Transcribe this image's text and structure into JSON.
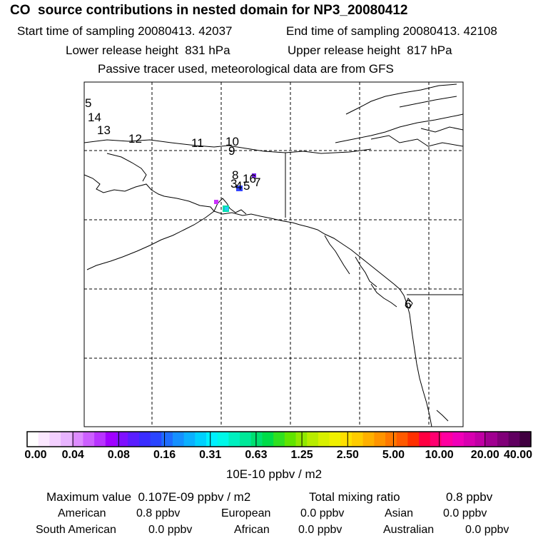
{
  "header": {
    "title": "CO  source contributions in nested domain for NP3_20080412",
    "start_time": "Start time of sampling 20080413. 42037",
    "end_time": "End time of sampling 20080413. 42108",
    "lower_release": "Lower release height  831 hPa",
    "upper_release": "Upper release height  817 hPa",
    "tracer_note": "Passive tracer used, meteorological data are from GFS"
  },
  "map": {
    "markers": [
      {
        "label": "5"
      },
      {
        "label": "14"
      },
      {
        "label": "13"
      },
      {
        "label": "12"
      },
      {
        "label": "11"
      },
      {
        "label": "10"
      },
      {
        "label": "9"
      },
      {
        "label": "8"
      },
      {
        "label": "16"
      },
      {
        "label": "7"
      },
      {
        "label": "3"
      },
      {
        "label": "4"
      },
      {
        "label": "5"
      },
      {
        "label": "6"
      }
    ],
    "highlight_colors": [
      "#cc33ff",
      "#00ddaa",
      "#3344ff",
      "#7722ee",
      "#22ccff"
    ]
  },
  "colorbar": {
    "ticks": [
      "0.00",
      "0.04",
      "0.08",
      "0.16",
      "0.31",
      "0.63",
      "1.25",
      "2.50",
      "5.00",
      "10.00",
      "20.00",
      "40.00"
    ],
    "units": "10E-10 ppbv / m2",
    "colors": [
      "#ffffff",
      "#fbe8ff",
      "#f3d0ff",
      "#e8b4ff",
      "#dd8cff",
      "#cc5fff",
      "#b833ff",
      "#a000ff",
      "#7f10ff",
      "#5a1eff",
      "#3a2dff",
      "#2a45ff",
      "#1e6cff",
      "#1590ff",
      "#0bb0ff",
      "#00d0ff",
      "#00f0ff",
      "#00f8e8",
      "#00f0c0",
      "#00e898",
      "#00e070",
      "#00dc48",
      "#30e020",
      "#60e400",
      "#90e800",
      "#b8ec00",
      "#d8f000",
      "#f0f000",
      "#ffe000",
      "#ffcc00",
      "#ffb000",
      "#ff9400",
      "#ff7800",
      "#ff5a00",
      "#ff3000",
      "#ff0040",
      "#ff0070",
      "#ff00a0",
      "#f000b8",
      "#d800b0",
      "#c000a4",
      "#a00090",
      "#800078",
      "#600060",
      "#400040"
    ]
  },
  "stats": {
    "max_value": "Maximum value  0.107E-09 ppbv / m2",
    "total_mixing": "Total mixing ratio",
    "total_mixing_value": "0.8 ppbv",
    "american_label": "American",
    "american_value": "0.8 ppbv",
    "european_label": "European",
    "european_value": "0.0 ppbv",
    "asian_label": "Asian",
    "asian_value": "0.0 ppbv",
    "south_american_label": "South American",
    "south_american_value": "0.0 ppbv",
    "african_label": "African",
    "african_value": "0.0 ppbv",
    "australian_label": "Australian",
    "australian_value": "0.0 ppbv"
  }
}
